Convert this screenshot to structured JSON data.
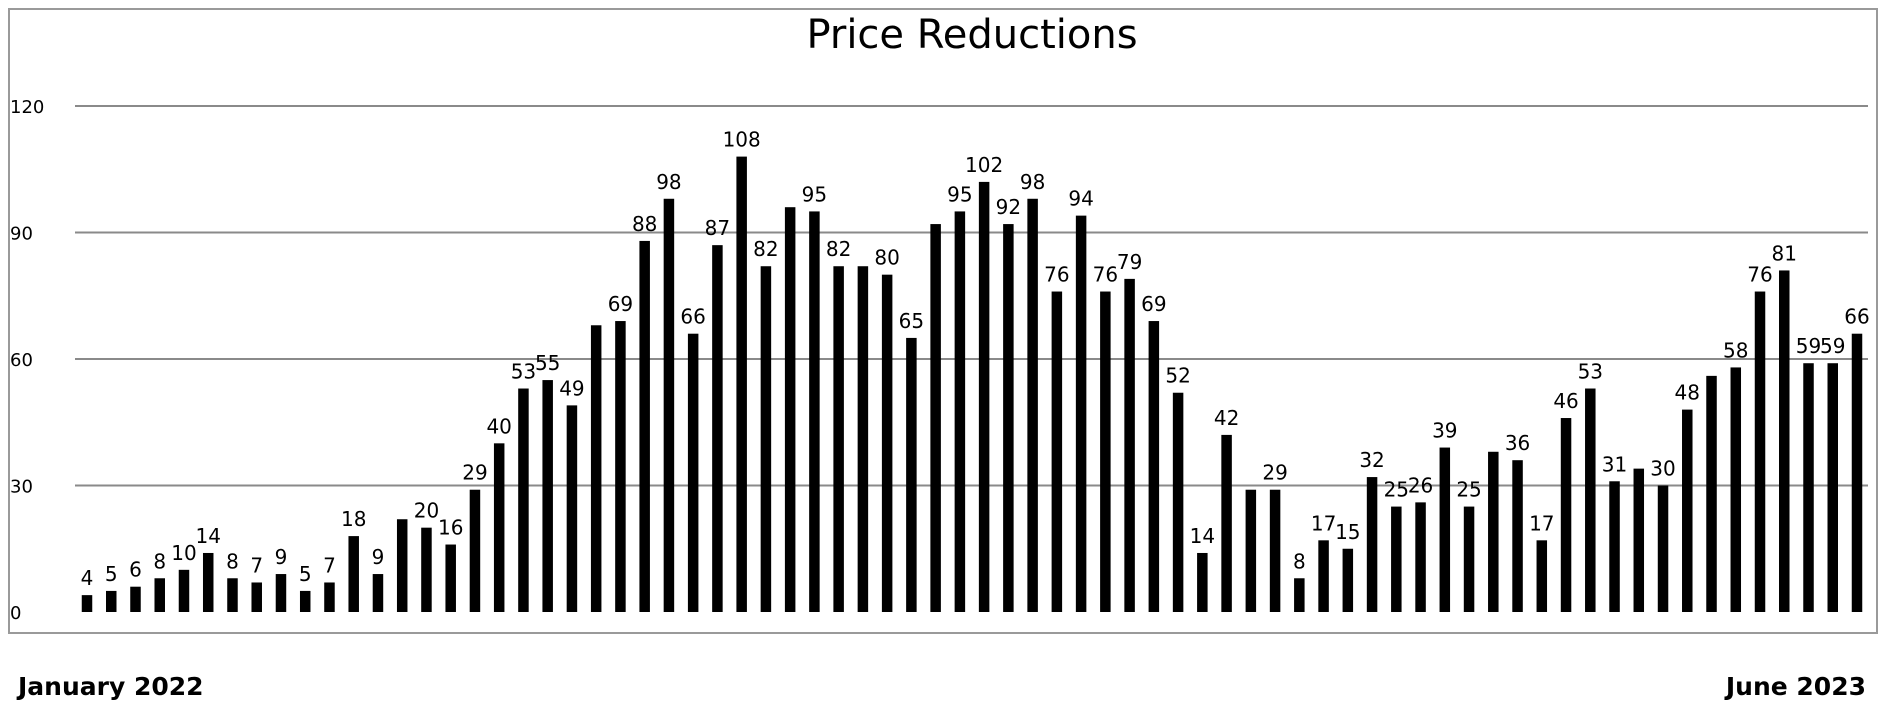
{
  "chart_data": {
    "type": "bar",
    "title": "Price Reductions",
    "ylim": [
      0,
      120
    ],
    "yticks": [
      0,
      30,
      60,
      90,
      120
    ],
    "ytick_labels": [
      "0",
      "30",
      "60",
      "90",
      "120"
    ],
    "grid": true,
    "bar_color": "#000000",
    "values": [
      4,
      5,
      6,
      8,
      10,
      14,
      8,
      7,
      9,
      5,
      7,
      18,
      9,
      22,
      20,
      16,
      29,
      40,
      53,
      55,
      49,
      68,
      69,
      88,
      98,
      66,
      87,
      108,
      82,
      96,
      95,
      82,
      82,
      80,
      65,
      92,
      95,
      102,
      92,
      98,
      76,
      94,
      76,
      79,
      69,
      52,
      14,
      42,
      29,
      29,
      8,
      17,
      15,
      32,
      25,
      26,
      39,
      25,
      38,
      36,
      17,
      46,
      53,
      31,
      34,
      30,
      48,
      56,
      58,
      76,
      81,
      59,
      59,
      66
    ],
    "data_labels": [
      "4",
      "5",
      "6",
      "8",
      "10",
      "14",
      "8",
      "7",
      "9",
      "5",
      "7",
      "18",
      "9",
      "",
      "20",
      "16",
      "29",
      "40",
      "53",
      "55",
      "49",
      "",
      "69",
      "88",
      "98",
      "66",
      "87",
      "108",
      "82",
      "",
      "95",
      "82",
      "",
      "80",
      "65",
      "",
      "95",
      "102",
      "92",
      "98",
      "76",
      "94",
      "76",
      "79",
      "69",
      "52",
      "14",
      "42",
      "",
      "29",
      "8",
      "17",
      "15",
      "32",
      "25",
      "26",
      "39",
      "25",
      "",
      "36",
      "17",
      "46",
      "53",
      "31",
      "",
      "30",
      "48",
      "",
      "58",
      "76",
      "81",
      "59",
      "59",
      "66"
    ]
  },
  "footer": {
    "start_label": "January 2022",
    "end_label": "June 2023"
  }
}
